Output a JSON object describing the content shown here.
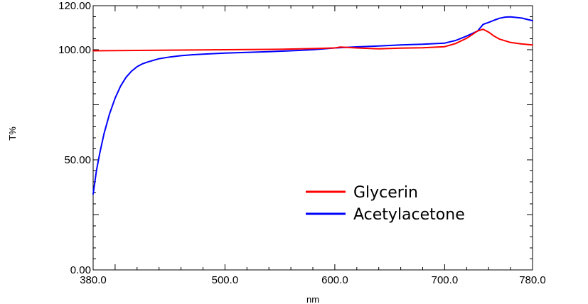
{
  "chart_data": {
    "type": "line",
    "xlabel": "nm",
    "ylabel": "T%",
    "xlim": [
      380,
      780
    ],
    "ylim": [
      0,
      120
    ],
    "x_ticks": [
      "380.0",
      "500.0",
      "600.0",
      "700.0",
      "780.0"
    ],
    "y_ticks": [
      "0.00",
      "50.00",
      "100.00",
      "120.00"
    ],
    "legend_position": "lower-right inside plot",
    "series": [
      {
        "name": "Glycerin",
        "color": "#ff0000",
        "x": [
          380,
          400,
          450,
          500,
          550,
          580,
          600,
          605,
          620,
          640,
          660,
          680,
          700,
          710,
          720,
          730,
          735,
          740,
          745,
          750,
          760,
          770,
          780
        ],
        "y": [
          99.5,
          99.6,
          99.8,
          100.0,
          100.2,
          100.5,
          100.8,
          101.2,
          100.8,
          100.4,
          100.7,
          100.9,
          101.4,
          102.8,
          105.2,
          108.5,
          109.3,
          108.0,
          106.2,
          104.8,
          103.3,
          102.6,
          102.2
        ]
      },
      {
        "name": "Acetylacetone",
        "color": "#0000ff",
        "x": [
          380,
          383,
          386,
          390,
          395,
          400,
          405,
          410,
          415,
          420,
          425,
          430,
          440,
          450,
          460,
          470,
          480,
          500,
          520,
          540,
          560,
          580,
          600,
          620,
          640,
          660,
          680,
          700,
          710,
          720,
          730,
          735,
          740,
          745,
          750,
          755,
          760,
          770,
          780
        ],
        "y": [
          34.5,
          45.0,
          53.0,
          62.0,
          71.0,
          78.0,
          83.5,
          87.5,
          90.3,
          92.3,
          93.6,
          94.5,
          95.9,
          96.7,
          97.3,
          97.7,
          98.0,
          98.5,
          98.8,
          99.1,
          99.5,
          100.0,
          100.8,
          101.3,
          101.7,
          102.2,
          102.5,
          103.0,
          104.2,
          106.2,
          108.5,
          111.5,
          112.4,
          113.4,
          114.3,
          114.8,
          114.9,
          114.4,
          113.2
        ]
      }
    ]
  }
}
